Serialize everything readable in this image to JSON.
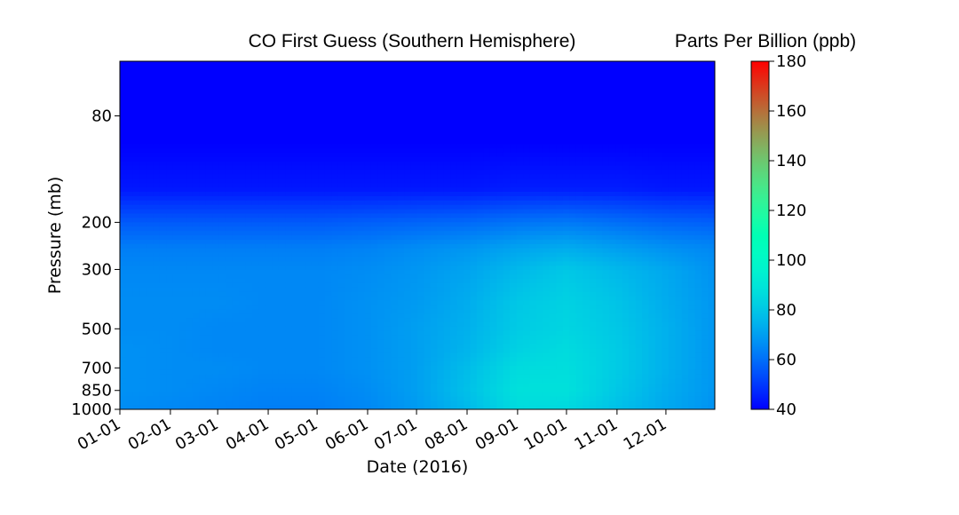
{
  "chart_data": {
    "type": "heatmap",
    "title": "CO First Guess (Southern Hemisphere)",
    "xlabel": "Date (2016)",
    "ylabel": "Pressure (mb)",
    "x_ticks": [
      "01-01",
      "02-01",
      "03-01",
      "04-01",
      "05-01",
      "06-01",
      "07-01",
      "08-01",
      "09-01",
      "10-01",
      "11-01",
      "12-01"
    ],
    "x_tick_days": [
      0,
      31,
      60,
      91,
      121,
      152,
      182,
      213,
      244,
      274,
      305,
      335
    ],
    "xlim": [
      0,
      365
    ],
    "y_ticks": [
      80,
      200,
      300,
      500,
      700,
      850,
      1000
    ],
    "ylim": [
      1000,
      50
    ],
    "colorbar": {
      "label": "Parts Per Billion (ppb)",
      "ticks": [
        40,
        60,
        80,
        100,
        120,
        140,
        160,
        180
      ],
      "range": [
        40,
        180
      ],
      "colormap": "rainbow"
    },
    "pressure_levels": [
      50,
      100,
      150,
      200,
      250,
      300,
      400,
      500,
      600,
      700,
      850,
      1000
    ],
    "time_points": [
      0,
      31,
      60,
      91,
      121,
      152,
      182,
      213,
      244,
      274,
      305,
      335,
      365
    ],
    "values": [
      [
        40,
        40,
        40,
        40,
        40,
        40,
        40,
        40,
        40,
        40,
        40,
        40,
        40
      ],
      [
        40,
        40,
        40,
        40,
        40,
        40,
        40,
        40,
        40,
        40,
        40,
        40,
        40
      ],
      [
        44,
        44,
        44,
        44,
        44,
        44,
        44,
        44,
        45,
        45,
        45,
        44,
        44
      ],
      [
        56,
        56,
        56,
        56,
        56,
        57,
        58,
        59,
        61,
        62,
        60,
        58,
        57
      ],
      [
        63,
        63,
        63,
        63,
        63,
        64,
        66,
        68,
        71,
        73,
        70,
        67,
        65
      ],
      [
        65,
        65,
        65,
        65,
        65,
        66,
        68,
        71,
        76,
        80,
        76,
        72,
        67
      ],
      [
        66,
        66,
        66,
        65,
        65,
        67,
        69,
        73,
        80,
        83,
        79,
        73,
        68
      ],
      [
        66,
        66,
        65,
        65,
        65,
        67,
        70,
        74,
        81,
        84,
        80,
        74,
        68
      ],
      [
        67,
        66,
        65,
        65,
        65,
        67,
        70,
        75,
        83,
        86,
        81,
        74,
        68
      ],
      [
        67,
        66,
        66,
        65,
        65,
        67,
        70,
        77,
        86,
        87,
        81,
        74,
        68
      ],
      [
        67,
        66,
        65,
        64,
        64,
        66,
        70,
        78,
        88,
        88,
        80,
        73,
        68
      ],
      [
        66,
        65,
        64,
        63,
        63,
        65,
        69,
        76,
        86,
        85,
        78,
        72,
        67
      ]
    ]
  }
}
